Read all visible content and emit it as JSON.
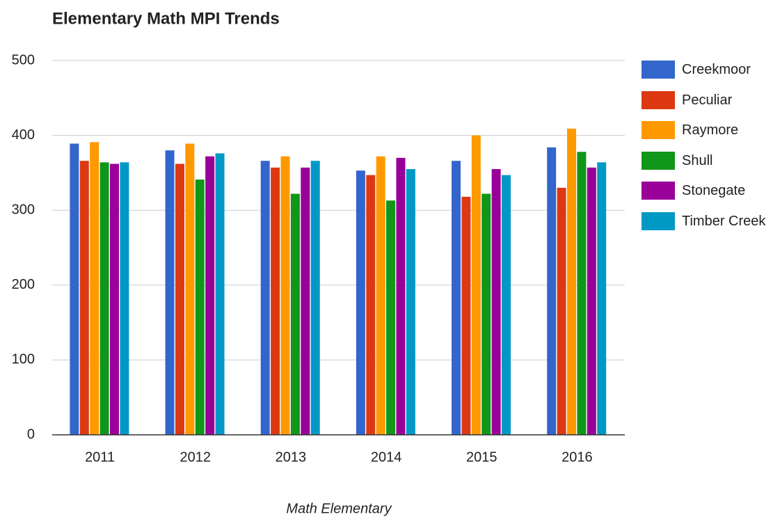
{
  "chart_data": {
    "type": "bar",
    "title": "Elementary Math MPI Trends",
    "x_label": "Math Elementary",
    "categories": [
      "2011",
      "2012",
      "2013",
      "2014",
      "2015",
      "2016"
    ],
    "series": [
      {
        "name": "Creekmoor",
        "color": "#3366cc",
        "values": [
          389,
          380,
          366,
          353,
          366,
          384
        ]
      },
      {
        "name": "Peculiar",
        "color": "#dc3912",
        "values": [
          366,
          362,
          357,
          347,
          318,
          330
        ]
      },
      {
        "name": "Raymore",
        "color": "#ff9900",
        "values": [
          391,
          389,
          372,
          372,
          400,
          409
        ]
      },
      {
        "name": "Shull",
        "color": "#109618",
        "values": [
          364,
          341,
          322,
          313,
          322,
          378
        ]
      },
      {
        "name": "Stonegate",
        "color": "#990099",
        "values": [
          362,
          372,
          357,
          370,
          355,
          357
        ]
      },
      {
        "name": "Timber Creek",
        "color": "#0099c6",
        "values": [
          364,
          376,
          366,
          355,
          347,
          364
        ]
      }
    ],
    "ylim": [
      0,
      500
    ],
    "yticks": [
      0,
      100,
      200,
      300,
      400,
      500
    ],
    "grid": true,
    "legend": "right"
  }
}
